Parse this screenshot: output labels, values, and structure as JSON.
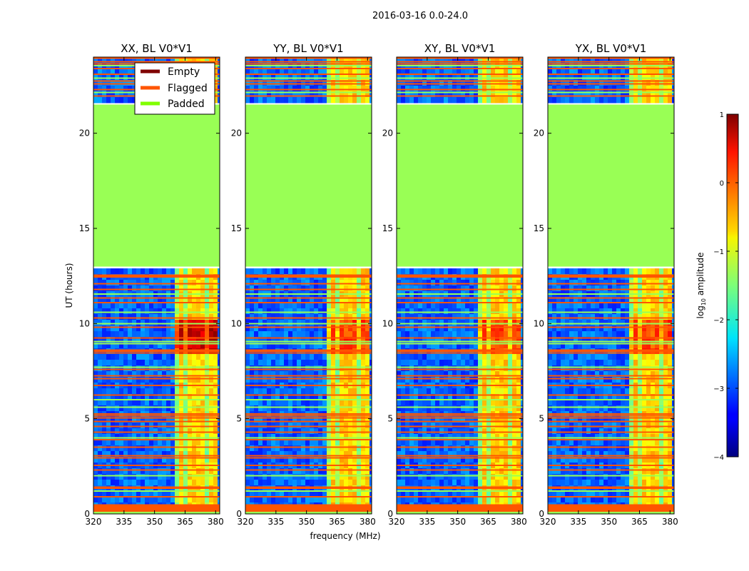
{
  "figure": {
    "suptitle": "2016-03-16 0.0-24.0"
  },
  "colors": {
    "empty": "#7f0000",
    "flagged": "#ff5500",
    "padded": "#80ff00",
    "padded_fill": "#99ff55",
    "background": "#ffffff"
  },
  "chart_data": [
    {
      "type": "heatmap",
      "title": "XX, BL V0*V1",
      "xlabel": "",
      "ylabel": "UT (hours)",
      "xlim": [
        320,
        382
      ],
      "ylim": [
        0,
        24
      ],
      "xticks": [
        "320",
        "335",
        "350",
        "365",
        "380"
      ],
      "yticks": [
        "0",
        "5",
        "10",
        "15",
        "20"
      ],
      "padded_range_hours": [
        13,
        21.5
      ],
      "flagged_range_hours": [
        0,
        0.5
      ],
      "bright_band_mhz": [
        360,
        380
      ],
      "legend": {
        "position": "top-center",
        "entries": [
          {
            "label": "Empty",
            "color": "#7f0000"
          },
          {
            "label": "Flagged",
            "color": "#ff5500"
          },
          {
            "label": "Padded",
            "color": "#80ff00"
          }
        ]
      }
    },
    {
      "type": "heatmap",
      "title": "YY, BL V0*V1",
      "xlabel": "frequency (MHz)",
      "ylabel": "",
      "xlim": [
        320,
        382
      ],
      "ylim": [
        0,
        24
      ],
      "xticks": [
        "320",
        "335",
        "350",
        "365",
        "380"
      ],
      "yticks": [
        "0",
        "5",
        "10",
        "15",
        "20"
      ],
      "padded_range_hours": [
        13,
        21.5
      ],
      "flagged_range_hours": [
        0,
        0.5
      ],
      "bright_band_mhz": [
        360,
        380
      ]
    },
    {
      "type": "heatmap",
      "title": "XY, BL V0*V1",
      "xlabel": "",
      "ylabel": "",
      "xlim": [
        320,
        382
      ],
      "ylim": [
        0,
        24
      ],
      "xticks": [
        "320",
        "335",
        "350",
        "365",
        "380"
      ],
      "yticks": [
        "0",
        "5",
        "10",
        "15",
        "20"
      ],
      "padded_range_hours": [
        13,
        21.5
      ],
      "flagged_range_hours": [
        0,
        0.5
      ],
      "bright_band_mhz": [
        360,
        380
      ]
    },
    {
      "type": "heatmap",
      "title": "YX, BL V0*V1",
      "xlabel": "",
      "ylabel": "",
      "xlim": [
        320,
        382
      ],
      "ylim": [
        0,
        24
      ],
      "xticks": [
        "320",
        "335",
        "350",
        "365",
        "380"
      ],
      "yticks": [
        "0",
        "5",
        "10",
        "15",
        "20"
      ],
      "padded_range_hours": [
        13,
        21.5
      ],
      "flagged_range_hours": [
        0,
        0.5
      ],
      "bright_band_mhz": [
        360,
        380
      ]
    }
  ],
  "colorbar": {
    "label": "log10 amplitude",
    "range": [
      -4,
      1
    ],
    "ticks": [
      "1",
      "0",
      "−1",
      "−2",
      "−3",
      "−4"
    ]
  }
}
